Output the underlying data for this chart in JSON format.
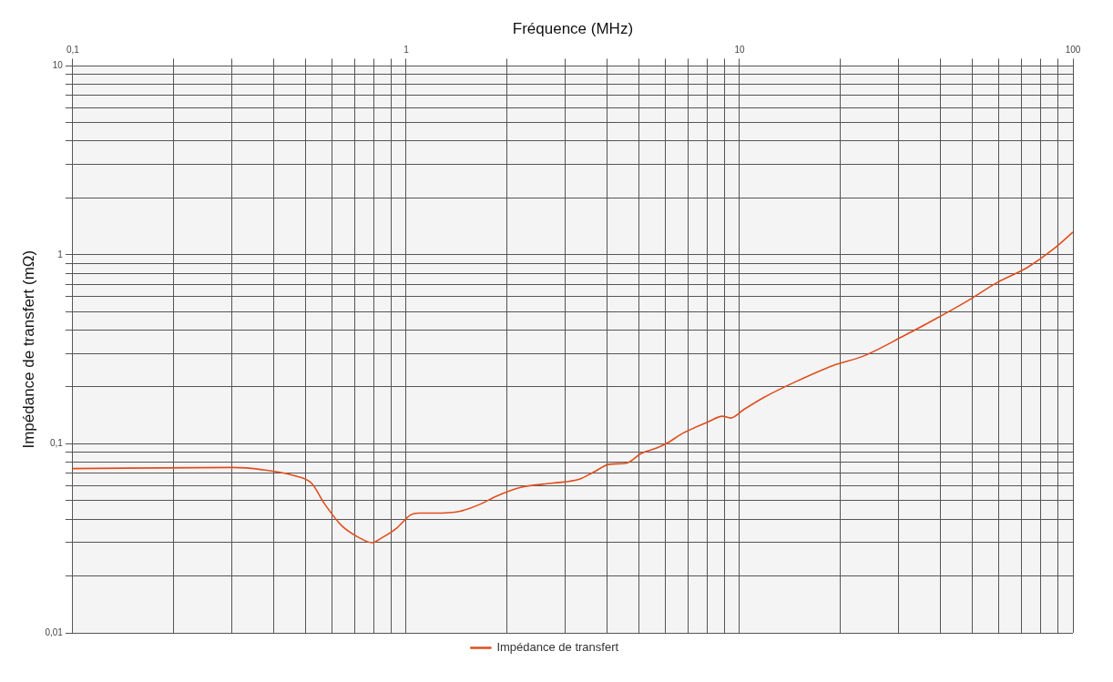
{
  "chart_data": {
    "type": "line",
    "xlabel": "Fréquence (MHz)",
    "ylabel": "Impédance de transfert (mΩ)",
    "log": "xy",
    "grid": true,
    "legend": "bottom",
    "marker": "none",
    "line_style": "solid",
    "xlim": [
      0.1,
      100
    ],
    "ylim": [
      0.01,
      10
    ],
    "xticks": [
      {
        "value": 0.1,
        "label": "0,1"
      },
      {
        "value": 0.2,
        "label": null
      },
      {
        "value": 0.3,
        "label": null
      },
      {
        "value": 0.4,
        "label": null
      },
      {
        "value": 0.5,
        "label": null
      },
      {
        "value": 0.6,
        "label": null
      },
      {
        "value": 0.7,
        "label": null
      },
      {
        "value": 0.8,
        "label": null
      },
      {
        "value": 0.9,
        "label": null
      },
      1,
      {
        "value": 2,
        "label": null
      },
      {
        "value": 3,
        "label": null
      },
      {
        "value": 4,
        "label": null
      },
      {
        "value": 5,
        "label": null
      },
      {
        "value": 6,
        "label": null
      },
      {
        "value": 7,
        "label": null
      },
      {
        "value": 8,
        "label": null
      },
      {
        "value": 9,
        "label": null
      },
      10,
      {
        "value": 20,
        "label": null
      },
      {
        "value": 30,
        "label": null
      },
      {
        "value": 40,
        "label": null
      },
      {
        "value": 50,
        "label": null
      },
      {
        "value": 60,
        "label": null
      },
      {
        "value": 70,
        "label": null
      },
      {
        "value": 80,
        "label": null
      },
      {
        "value": 90,
        "label": null
      },
      100
    ],
    "yticks": [
      {
        "value": 0.01,
        "label": "0,01"
      },
      {
        "value": 0.02,
        "label": null
      },
      {
        "value": 0.03,
        "label": null
      },
      {
        "value": 0.04,
        "label": null
      },
      {
        "value": 0.05,
        "label": null
      },
      {
        "value": 0.06,
        "label": null
      },
      {
        "value": 0.07,
        "label": null
      },
      {
        "value": 0.08,
        "label": null
      },
      {
        "value": 0.09,
        "label": null
      },
      {
        "value": 0.1,
        "label": "0,1"
      },
      {
        "value": 0.2,
        "label": null
      },
      {
        "value": 0.3,
        "label": null
      },
      {
        "value": 0.4,
        "label": null
      },
      {
        "value": 0.5,
        "label": null
      },
      {
        "value": 0.6,
        "label": null
      },
      {
        "value": 0.7,
        "label": null
      },
      {
        "value": 0.8,
        "label": null
      },
      {
        "value": 0.9,
        "label": null
      },
      1,
      {
        "value": 2,
        "label": null
      },
      {
        "value": 3,
        "label": null
      },
      {
        "value": 4,
        "label": null
      },
      {
        "value": 5,
        "label": null
      },
      {
        "value": 6,
        "label": null
      },
      {
        "value": 7,
        "label": null
      },
      {
        "value": 8,
        "label": null
      },
      {
        "value": 9,
        "label": null
      },
      10
    ],
    "series": [
      {
        "name": "Impédance de transfert",
        "color": "#e04e1e",
        "x": [
          0.1,
          0.3,
          0.37,
          0.46,
          0.52,
          0.57,
          0.64,
          0.72,
          0.79,
          0.85,
          0.94,
          1.03,
          1.09,
          1.21,
          1.45,
          1.67,
          1.87,
          2.22,
          2.76,
          3.31,
          3.66,
          4.07,
          4.57,
          5.07,
          5.64,
          6.07,
          6.77,
          8.0,
          8.9,
          9.4,
          10.3,
          11.9,
          14.8,
          19,
          23.6,
          31.2,
          38.6,
          47.8,
          59.2,
          73.4,
          87.8,
          100
        ],
        "values": [
          0.074,
          0.075,
          0.073,
          0.068,
          0.062,
          0.048,
          0.037,
          0.032,
          0.03,
          0.032,
          0.036,
          0.042,
          0.043,
          0.043,
          0.044,
          0.048,
          0.053,
          0.059,
          0.062,
          0.065,
          0.071,
          0.078,
          0.079,
          0.089,
          0.095,
          0.101,
          0.114,
          0.13,
          0.14,
          0.137,
          0.152,
          0.177,
          0.214,
          0.259,
          0.292,
          0.374,
          0.457,
          0.565,
          0.713,
          0.863,
          1.08,
          1.32
        ]
      }
    ]
  }
}
